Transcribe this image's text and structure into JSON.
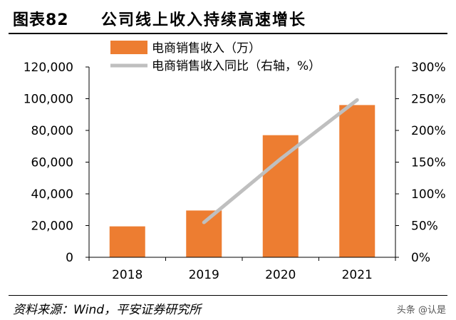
{
  "header": {
    "figure_number": "图表82",
    "title": "公司线上收入持续高速增长"
  },
  "source": "资料来源：Wind，平安证券研究所",
  "watermark": "头条 @认是",
  "colors": {
    "bar": "#ED7D31",
    "line": "#BFBFBF",
    "axis": "#000000"
  },
  "chart_data": {
    "type": "bar",
    "categories": [
      "2018",
      "2019",
      "2020",
      "2021"
    ],
    "series": [
      {
        "name": "电商销售收入（万）",
        "type": "bar",
        "axis": "left",
        "values": [
          19500,
          29500,
          77000,
          96000
        ]
      },
      {
        "name": "电商销售收入同比（右轴，%）",
        "type": "line",
        "axis": "right",
        "values": [
          null,
          55,
          155,
          248
        ]
      }
    ],
    "y_left": {
      "range": [
        0,
        120000
      ],
      "ticks": [
        "0",
        "20,000",
        "40,000",
        "60,000",
        "80,000",
        "100,000",
        "120,000"
      ]
    },
    "y_right": {
      "range": [
        0,
        300
      ],
      "ticks": [
        "0%",
        "50%",
        "100%",
        "150%",
        "200%",
        "250%",
        "300%"
      ]
    },
    "legend_position": "top",
    "grid": false
  }
}
